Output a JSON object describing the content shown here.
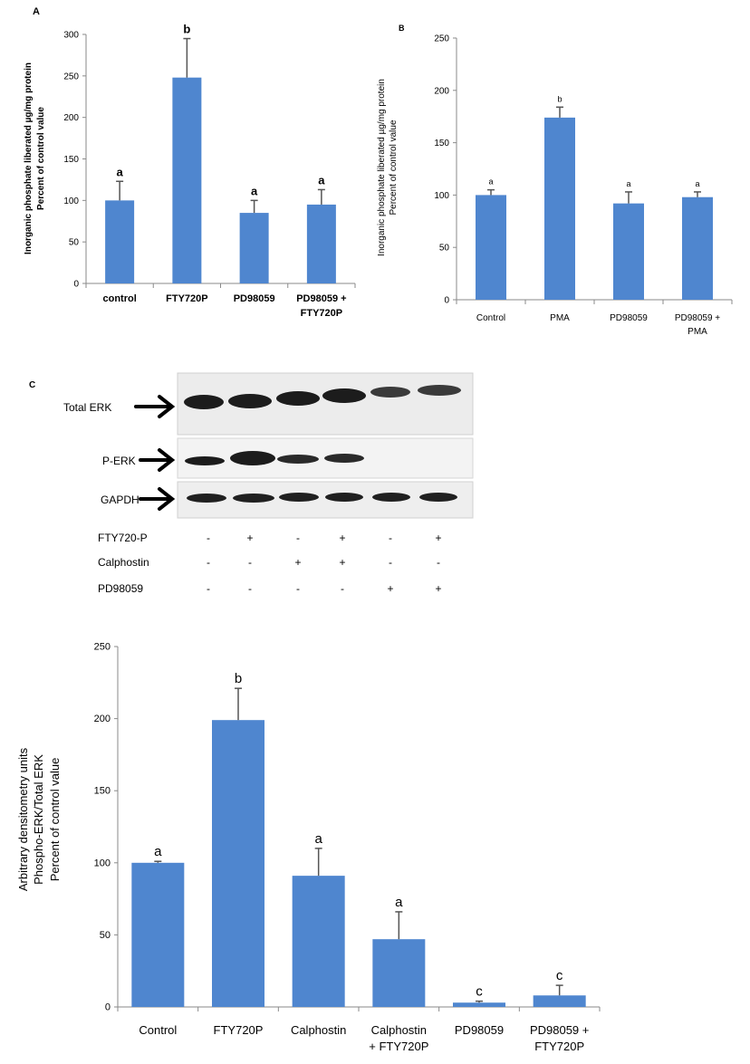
{
  "panels": {
    "a": "A",
    "b": "B",
    "c": "C"
  },
  "colors": {
    "bar": "#4f86cf",
    "axis": "#8a8a8a",
    "error": "#555555"
  },
  "chart_data": [
    {
      "id": "chartA",
      "type": "bar",
      "categories": [
        "control",
        "FTY720P",
        "PD98059",
        "PD98059 + FTY720P"
      ],
      "values": [
        100,
        248,
        85,
        95
      ],
      "errors": [
        23,
        47,
        15,
        18
      ],
      "significance": [
        "a",
        "b",
        "a",
        "a"
      ],
      "ylabel": [
        "Inorganic phosphate liberated  µg/mg protein",
        "Percent of control value"
      ],
      "ylim": [
        0,
        300
      ],
      "yticks": [
        0,
        50,
        100,
        150,
        200,
        250,
        300
      ]
    },
    {
      "id": "chartB",
      "type": "bar",
      "categories": [
        "Control",
        "PMA",
        "PD98059",
        "PD98059 + PMA"
      ],
      "values": [
        100,
        174,
        92,
        98
      ],
      "errors": [
        5,
        10,
        11,
        5
      ],
      "significance": [
        "a",
        "b",
        "a",
        "a"
      ],
      "ylabel": [
        "Inorganic phosphate liberated  µg/mg protein",
        "Percent of control value"
      ],
      "ylim": [
        0,
        250
      ],
      "yticks": [
        0,
        50,
        100,
        150,
        200,
        250
      ]
    },
    {
      "id": "chartC",
      "type": "bar",
      "categories": [
        "Control",
        "FTY720P",
        "Calphostin",
        "Calphostin + FTY720P",
        "PD98059",
        "PD98059 + FTY720P"
      ],
      "values": [
        100,
        199,
        91,
        47,
        3,
        8
      ],
      "errors": [
        1,
        22,
        19,
        19,
        1,
        7
      ],
      "significance": [
        "a",
        "b",
        "a",
        "a",
        "c",
        "c"
      ],
      "ylabel": [
        "Arbitrary densitometry units",
        "Phospho-ERK/Total ERK",
        "Percent of control value"
      ],
      "ylim": [
        0,
        250
      ],
      "yticks": [
        0,
        50,
        100,
        150,
        200,
        250
      ]
    }
  ],
  "blot": {
    "rows": [
      "Total ERK",
      "P-ERK",
      "GAPDH"
    ],
    "treatments": [
      {
        "name": "FTY720-P",
        "signs": [
          "-",
          "+",
          "-",
          "+",
          "-",
          "+"
        ]
      },
      {
        "name": "Calphostin",
        "signs": [
          "-",
          "-",
          "+",
          "+",
          "-",
          "-"
        ]
      },
      {
        "name": "PD98059",
        "signs": [
          "-",
          "-",
          "-",
          "-",
          "+",
          "+"
        ]
      }
    ]
  }
}
